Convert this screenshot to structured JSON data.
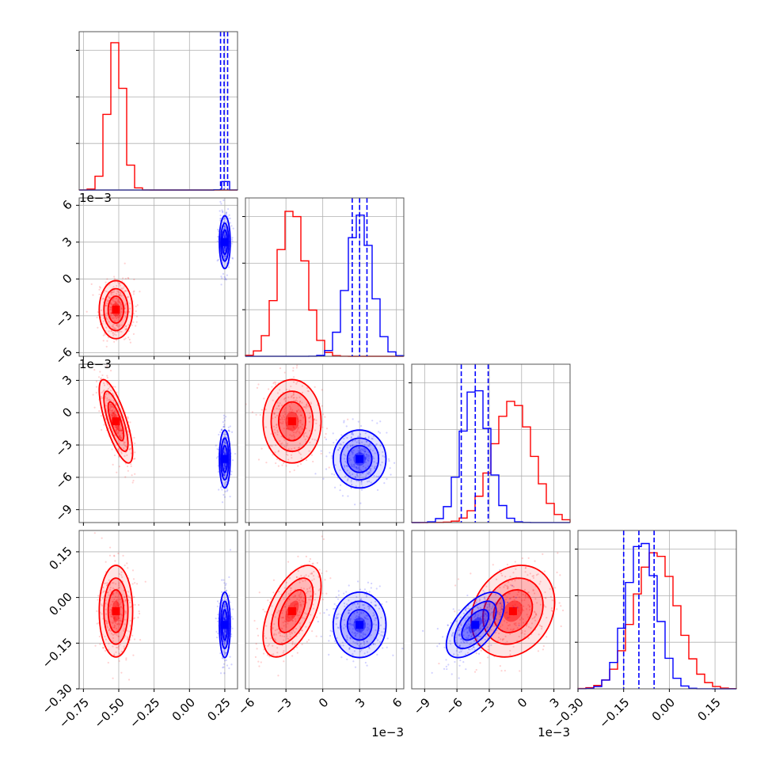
{
  "chart_data": {
    "type": "corner",
    "grid": true,
    "series": [
      {
        "color": "#ff0000"
      },
      {
        "color": "#0000ff"
      }
    ],
    "parameters": [
      {
        "id": "p1",
        "range": [
          -0.78,
          0.34
        ],
        "ticks": [
          -0.75,
          -0.5,
          -0.25,
          0.0,
          0.25
        ],
        "tick_labels": [
          "−0.75",
          "−0.50",
          "−0.25",
          "0.00",
          "0.25"
        ],
        "offset": ""
      },
      {
        "id": "p2",
        "range": [
          -6.3,
          6.6
        ],
        "ticks": [
          -6,
          -3,
          0,
          3,
          6
        ],
        "tick_labels": [
          "−6",
          "−3",
          "0",
          "3",
          "6"
        ],
        "offset": "1e−3"
      },
      {
        "id": "p3",
        "range": [
          -10.2,
          4.5
        ],
        "ticks": [
          -9,
          -6,
          -3,
          0,
          3
        ],
        "tick_labels": [
          "−9",
          "−6",
          "−3",
          "0",
          "3"
        ],
        "offset": "1e−3"
      },
      {
        "id": "p4",
        "range": [
          -0.3,
          0.22
        ],
        "ticks": [
          -0.3,
          -0.15,
          0.0,
          0.15
        ],
        "tick_labels": [
          "−0.30",
          "−0.15",
          "0.00",
          "0.15"
        ],
        "offset": ""
      }
    ],
    "posteriors": {
      "red": {
        "mean": [
          -0.52,
          -2.5,
          -0.8,
          -0.045
        ],
        "std": [
          0.055,
          1.1,
          1.8,
          0.07
        ],
        "corr": {
          "1-3": -0.75,
          "2-4": 0.55,
          "3-4": 0.2,
          "1-2": 0.0,
          "1-4": 0.0,
          "2-3": 0.0
        },
        "hist_peaks": [
          1.0,
          1.0,
          0.82,
          0.92
        ]
      },
      "blue": {
        "mean": [
          0.25,
          3.0,
          -4.3,
          -0.09
        ],
        "std": [
          0.018,
          1.0,
          1.25,
          0.05
        ],
        "corr": {
          "1-3": 0.0,
          "2-4": 0.0,
          "3-4": 0.6,
          "1-2": 0.0,
          "1-4": 0.0,
          "2-3": 0.0
        },
        "hist_peaks": [
          0.06,
          0.95,
          0.92,
          1.0
        ],
        "quantiles": [
          [
            0.22,
            0.245,
            0.27
          ],
          [
            2.4,
            3.0,
            3.6
          ],
          [
            -5.6,
            -4.3,
            -3.1
          ],
          [
            -0.15,
            -0.1,
            -0.05
          ]
        ]
      }
    }
  }
}
